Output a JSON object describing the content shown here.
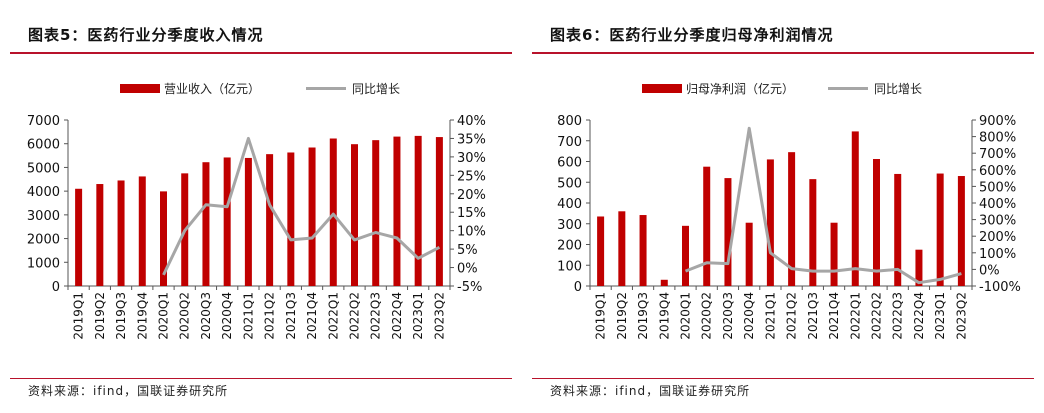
{
  "figures": [
    {
      "title": "图表5：医药行业分季度收入情况",
      "source": "资料来源：ifind，国联证券研究所",
      "chart_data": {
        "type": "bar",
        "categories": [
          "2019Q1",
          "2019Q2",
          "2019Q3",
          "2019Q4",
          "2020Q1",
          "2020Q2",
          "2020Q3",
          "2020Q4",
          "2021Q1",
          "2021Q2",
          "2021Q3",
          "2021Q4",
          "2022Q1",
          "2022Q2",
          "2022Q3",
          "2022Q4",
          "2023Q1",
          "2023Q2"
        ],
        "series": [
          {
            "name": "营业收入（亿元）",
            "type": "bar",
            "axis": "left",
            "color": "#c00000",
            "values": [
              4100,
              4300,
              4450,
              4620,
              3990,
              4750,
              5220,
              5420,
              5400,
              5560,
              5630,
              5840,
              6220,
              5980,
              6150,
              6300,
              6330,
              6280
            ]
          },
          {
            "name": "同比增长",
            "type": "line",
            "axis": "right",
            "color": "#a6a6a6",
            "values": [
              null,
              null,
              null,
              null,
              -2,
              10,
              17,
              16.5,
              35,
              17,
              7.5,
              8,
              14.5,
              7.5,
              9.5,
              8,
              2.5,
              5.5
            ]
          }
        ],
        "ylim": [
          0,
          7000
        ],
        "yticks": [
          0,
          1000,
          2000,
          3000,
          4000,
          5000,
          6000,
          7000
        ],
        "y2lim": [
          -5,
          40
        ],
        "y2ticks": [
          "-5%",
          "0%",
          "5%",
          "10%",
          "15%",
          "20%",
          "25%",
          "30%",
          "35%",
          "40%"
        ],
        "legend_position": "top"
      }
    },
    {
      "title": "图表6：医药行业分季度归母净利润情况",
      "source": "资料来源：ifind，国联证券研究所",
      "chart_data": {
        "type": "bar",
        "categories": [
          "2019Q1",
          "2019Q2",
          "2019Q3",
          "2019Q4",
          "2020Q1",
          "2020Q2",
          "2020Q3",
          "2020Q4",
          "2021Q1",
          "2021Q2",
          "2021Q3",
          "2021Q4",
          "2022Q1",
          "2022Q2",
          "2022Q3",
          "2022Q4",
          "2023Q1",
          "2023Q2"
        ],
        "series": [
          {
            "name": "归母净利润（亿元）",
            "type": "bar",
            "axis": "left",
            "color": "#c00000",
            "values": [
              335,
              360,
              342,
              30,
              290,
              575,
              520,
              305,
              610,
              645,
              515,
              305,
              745,
              612,
              540,
              175,
              542,
              530
            ]
          },
          {
            "name": "同比增长",
            "type": "line",
            "axis": "right",
            "color": "#a6a6a6",
            "values": [
              null,
              null,
              null,
              null,
              -10,
              40,
              35,
              850,
              100,
              5,
              -10,
              -10,
              5,
              -10,
              0,
              -80,
              -60,
              -25
            ]
          }
        ],
        "ylim": [
          0,
          800
        ],
        "yticks": [
          0,
          100,
          200,
          300,
          400,
          500,
          600,
          700,
          800
        ],
        "y2lim": [
          -100,
          900
        ],
        "y2ticks": [
          "-100%",
          "0%",
          "100%",
          "200%",
          "300%",
          "400%",
          "500%",
          "600%",
          "700%",
          "800%",
          "900%"
        ],
        "legend_position": "top"
      }
    }
  ]
}
